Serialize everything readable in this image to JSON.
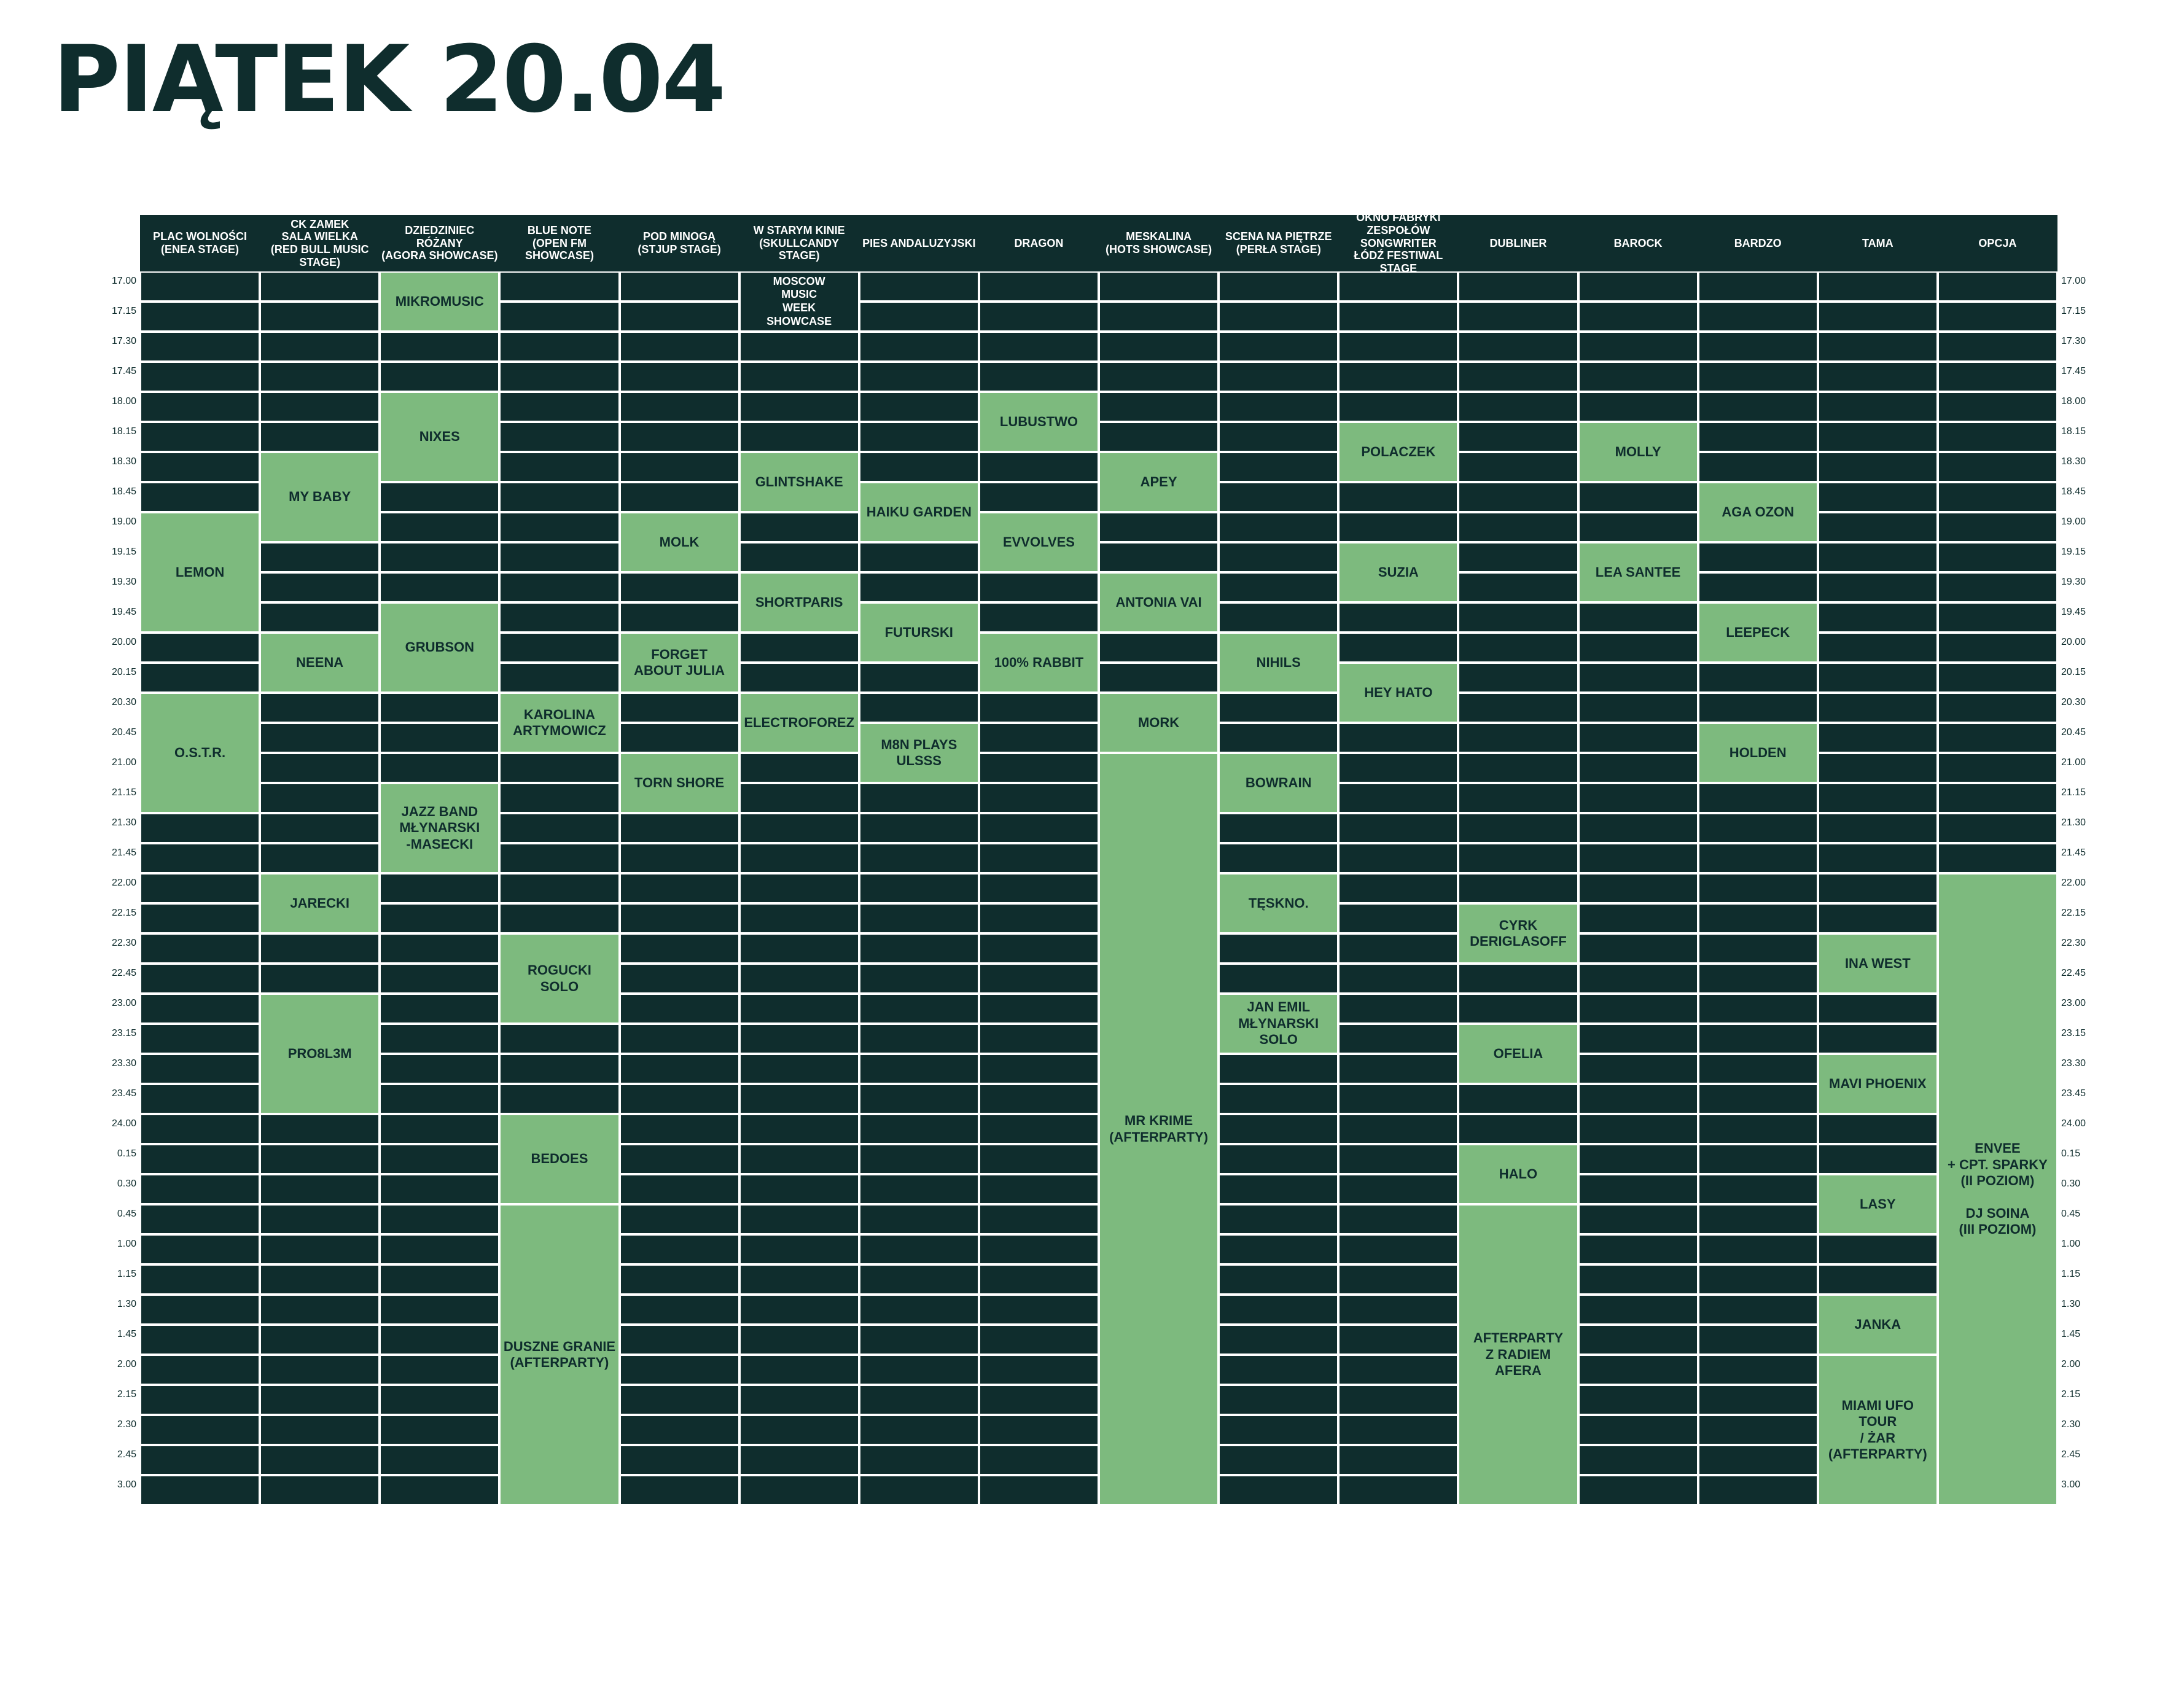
{
  "title": "PIĄTEK 20.04",
  "stages": [
    {
      "name": "PLAC WOLNOŚCI\n(ENEA STAGE)",
      "events": [
        {
          "label": "LEMON",
          "start": 8,
          "end": 12
        },
        {
          "label": "O.S.T.R.",
          "start": 14,
          "end": 18
        }
      ]
    },
    {
      "name": "CK ZAMEK\nSALA WIELKA\n(RED BULL MUSIC STAGE)",
      "events": [
        {
          "label": "MY BABY",
          "start": 6,
          "end": 9
        },
        {
          "label": "NEENA",
          "start": 12,
          "end": 14
        },
        {
          "label": "JARECKI",
          "start": 20,
          "end": 22
        },
        {
          "label": "PRO8L3M",
          "start": 24,
          "end": 28
        }
      ]
    },
    {
      "name": "DZIEDZINIEC RÓŻANY\n(AGORA SHOWCASE)",
      "events": [
        {
          "label": "MIKROMUSIC",
          "start": 0,
          "end": 2
        },
        {
          "label": "NIXES",
          "start": 4,
          "end": 7
        },
        {
          "label": "GRUBSON",
          "start": 11,
          "end": 14
        },
        {
          "label": "JAZZ BAND\nMŁYNARSKI\n-MASECKI",
          "start": 17,
          "end": 20
        }
      ]
    },
    {
      "name": "BLUE NOTE\n(OPEN FM SHOWCASE)",
      "events": [
        {
          "label": "KAROLINA\nARTYMOWICZ",
          "start": 14,
          "end": 16
        },
        {
          "label": "ROGUCKI\nSOLO",
          "start": 22,
          "end": 25
        },
        {
          "label": "BEDOES",
          "start": 28,
          "end": 31
        },
        {
          "label": "DUSZNE GRANIE\n(AFTERPARTY)",
          "start": 31,
          "end": 41
        }
      ]
    },
    {
      "name": "POD MINOGĄ\n(STJUP STAGE)",
      "events": [
        {
          "label": "MOLK",
          "start": 8,
          "end": 10
        },
        {
          "label": "FORGET\nABOUT JULIA",
          "start": 12,
          "end": 14
        },
        {
          "label": "TORN SHORE",
          "start": 16,
          "end": 18
        }
      ]
    },
    {
      "name": "W STARYM KINIE\n(SKULLCANDY STAGE)",
      "events": [
        {
          "label": "MOSCOW\nMUSIC\nWEEK\nSHOWCASE",
          "start": 0,
          "end": 2,
          "style": "dark"
        },
        {
          "label": "GLINTSHAKE",
          "start": 6,
          "end": 8
        },
        {
          "label": "SHORTPARIS",
          "start": 10,
          "end": 12
        },
        {
          "label": "ELECTROFOREZ",
          "start": 14,
          "end": 16
        }
      ]
    },
    {
      "name": "PIES ANDALUZYJSKI",
      "events": [
        {
          "label": "HAIKU GARDEN",
          "start": 7,
          "end": 9
        },
        {
          "label": "FUTURSKI",
          "start": 11,
          "end": 13
        },
        {
          "label": "M8N PLAYS\nULSSS",
          "start": 15,
          "end": 17
        }
      ]
    },
    {
      "name": "DRAGON",
      "events": [
        {
          "label": "LUBUSTWO",
          "start": 4,
          "end": 6
        },
        {
          "label": "EVVOLVES",
          "start": 8,
          "end": 10
        },
        {
          "label": "100% RABBIT",
          "start": 12,
          "end": 14
        }
      ]
    },
    {
      "name": "MESKALINA\n(HOTS SHOWCASE)",
      "events": [
        {
          "label": "APEY",
          "start": 6,
          "end": 8
        },
        {
          "label": "ANTONIA VAI",
          "start": 10,
          "end": 12
        },
        {
          "label": "MORK",
          "start": 14,
          "end": 16
        },
        {
          "label": "MR KRIME\n(AFTERPARTY)",
          "start": 16,
          "end": 41
        }
      ]
    },
    {
      "name": "SCENA NA PIĘTRZE\n(PERŁA STAGE)",
      "events": [
        {
          "label": "NIHILS",
          "start": 12,
          "end": 14
        },
        {
          "label": "BOWRAIN",
          "start": 16,
          "end": 18
        },
        {
          "label": "TĘSKNO.",
          "start": 20,
          "end": 22
        },
        {
          "label": "JAN EMIL\nMŁYNARSKI\nSOLO",
          "start": 24,
          "end": 26
        }
      ]
    },
    {
      "name": "OKNO FABRYKI ZESPOŁÓW\nSONGWRITER\nŁÓDŹ FESTIWAL\nSTAGE",
      "events": [
        {
          "label": "POLACZEK",
          "start": 5,
          "end": 7
        },
        {
          "label": "SUZIA",
          "start": 9,
          "end": 11
        },
        {
          "label": "HEY HATO",
          "start": 13,
          "end": 15
        }
      ]
    },
    {
      "name": "DUBLINER",
      "events": [
        {
          "label": "CYRK\nDERIGLASOFF",
          "start": 21,
          "end": 23
        },
        {
          "label": "OFELIA",
          "start": 25,
          "end": 27
        },
        {
          "label": "HALO",
          "start": 29,
          "end": 31
        },
        {
          "label": "AFTERPARTY\nZ RADIEM\nAFERA",
          "start": 31,
          "end": 41
        }
      ]
    },
    {
      "name": "BAROCK",
      "events": [
        {
          "label": "MOLLY",
          "start": 5,
          "end": 7
        },
        {
          "label": "LEA SANTEE",
          "start": 9,
          "end": 11
        }
      ]
    },
    {
      "name": "BARDZO",
      "events": [
        {
          "label": "AGA OZON",
          "start": 7,
          "end": 9
        },
        {
          "label": "LEEPECK",
          "start": 11,
          "end": 13
        },
        {
          "label": "HOLDEN",
          "start": 15,
          "end": 17
        }
      ]
    },
    {
      "name": "TAMA",
      "events": [
        {
          "label": "INA WEST",
          "start": 22,
          "end": 24
        },
        {
          "label": "MAVI PHOENIX",
          "start": 26,
          "end": 28
        },
        {
          "label": "LASY",
          "start": 30,
          "end": 32
        },
        {
          "label": "JANKA",
          "start": 34,
          "end": 36
        },
        {
          "label": "MIAMI UFO TOUR\n/ ŻAR\n(AFTERPARTY)",
          "start": 36,
          "end": 41
        }
      ]
    },
    {
      "name": "OPCJA",
      "events": [
        {
          "label": "ENVEE\n+ CPT. SPARKY\n(II POZIOM)\n\nDJ SOINA\n(III POZIOM)",
          "start": 20,
          "end": 41
        }
      ]
    }
  ],
  "times": [
    "17.00",
    "17.15",
    "17.30",
    "17.45",
    "18.00",
    "18.15",
    "18.30",
    "18.45",
    "19.00",
    "19.15",
    "19.30",
    "19.45",
    "20.00",
    "20.15",
    "20.30",
    "20.45",
    "21.00",
    "21.15",
    "21.30",
    "21.45",
    "22.00",
    "22.15",
    "22.30",
    "22.45",
    "23.00",
    "23.15",
    "23.30",
    "23.45",
    "24.00",
    "0.15",
    "0.30",
    "0.45",
    "1.00",
    "1.15",
    "1.30",
    "1.45",
    "2.00",
    "2.15",
    "2.30",
    "2.45",
    "3.00"
  ],
  "colors": {
    "dark": "#0f2d2d",
    "green": "#7dba7e",
    "line": "#ffffff"
  }
}
